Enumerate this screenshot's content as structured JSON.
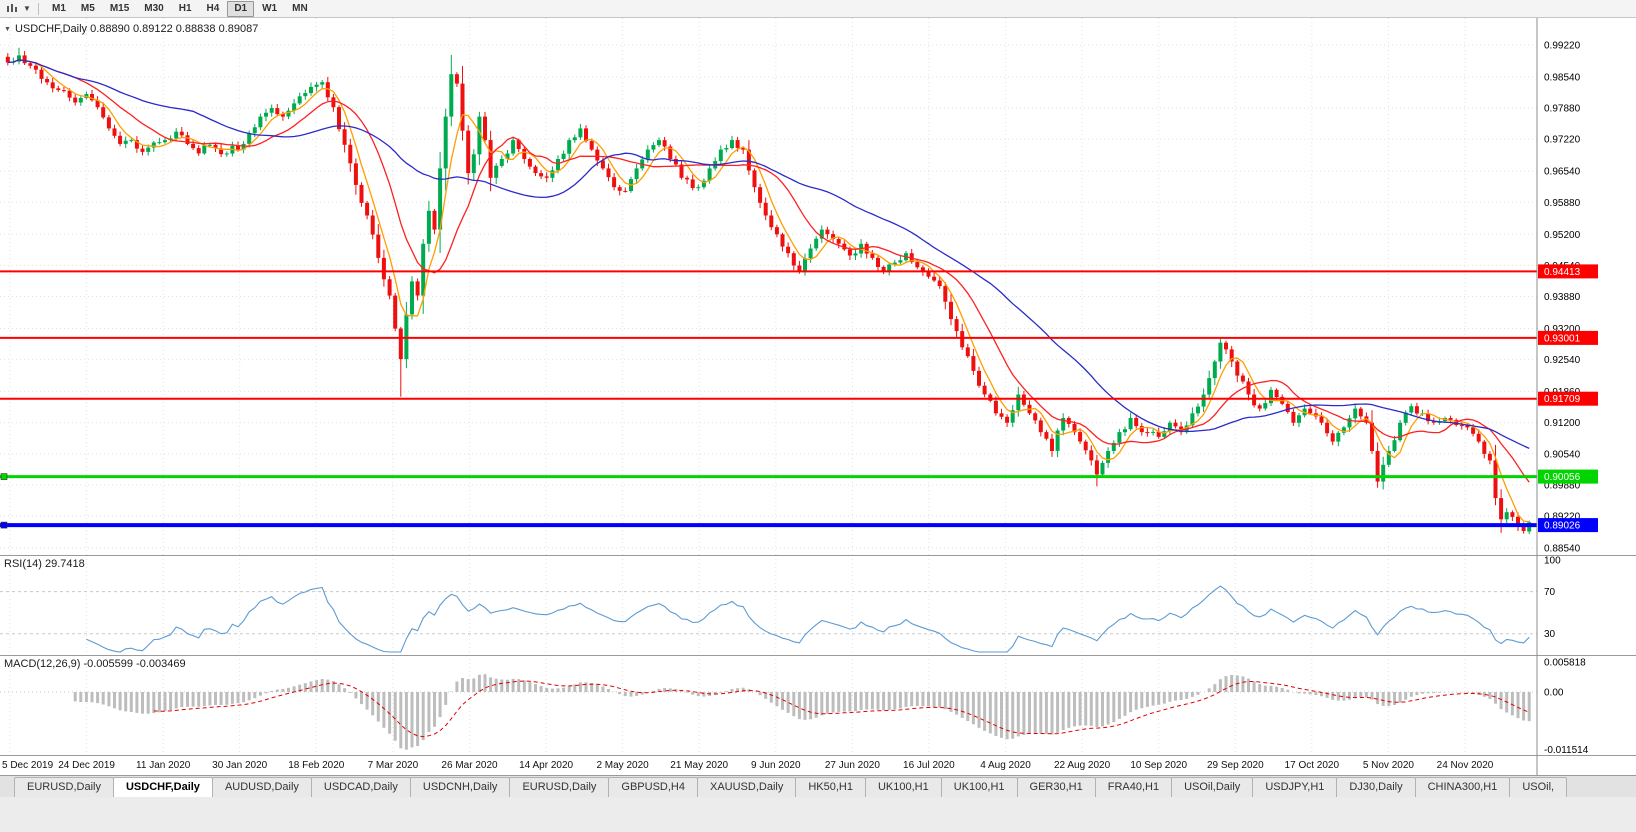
{
  "toolbar": {
    "chart_icon": "candlestick-chart",
    "dropdown_caret": "▼",
    "timeframes": [
      "M1",
      "M5",
      "M15",
      "M30",
      "H1",
      "H4",
      "D1",
      "W1",
      "MN"
    ],
    "active_timeframe": "D1"
  },
  "chart": {
    "collapse_icon": "▼",
    "title_symbol": "USDCHF,Daily",
    "title_ohlc": "0.88890 0.89122 0.88838 0.89087"
  },
  "chart_data": {
    "type": "candlestick",
    "symbol": "USDCHF",
    "period": "Daily",
    "last_candle": {
      "open": 0.8889,
      "high": 0.89122,
      "low": 0.88838,
      "close": 0.89087
    },
    "y_axis_ticks": [
      "0.99220",
      "0.98540",
      "0.97880",
      "0.97220",
      "0.96540",
      "0.95880",
      "0.95200",
      "0.94540",
      "0.93880",
      "0.93200",
      "0.92540",
      "0.91860",
      "0.91200",
      "0.90540",
      "0.89880",
      "0.89220",
      "0.88540"
    ],
    "y_top_value": 0.9922,
    "y_bottom_value": 0.8854,
    "x_labels": [
      "5 Dec 2019",
      "24 Dec 2019",
      "11 Jan 2020",
      "30 Jan 2020",
      "18 Feb 2020",
      "7 Mar 2020",
      "26 Mar 2020",
      "14 Apr 2020",
      "2 May 2020",
      "21 May 2020",
      "9 Jun 2020",
      "27 Jun 2020",
      "16 Jul 2020",
      "4 Aug 2020",
      "22 Aug 2020",
      "10 Sep 2020",
      "29 Sep 2020",
      "17 Oct 2020",
      "5 Nov 2020",
      "24 Nov 2020"
    ],
    "candle_count": 272,
    "noise": 0.0018,
    "up_color": "#00AB50",
    "down_color": "#EE0F0F",
    "close_anchors": [
      [
        0,
        0.9885
      ],
      [
        2,
        0.99
      ],
      [
        4,
        0.9878
      ],
      [
        6,
        0.985
      ],
      [
        8,
        0.983
      ],
      [
        10,
        0.9825
      ],
      [
        12,
        0.98
      ],
      [
        14,
        0.9818
      ],
      [
        16,
        0.979
      ],
      [
        18,
        0.9745
      ],
      [
        20,
        0.9712
      ],
      [
        22,
        0.972
      ],
      [
        24,
        0.9695
      ],
      [
        26,
        0.9715
      ],
      [
        28,
        0.972
      ],
      [
        30,
        0.9738
      ],
      [
        32,
        0.9712
      ],
      [
        34,
        0.9692
      ],
      [
        36,
        0.971
      ],
      [
        38,
        0.969
      ],
      [
        40,
        0.9708
      ],
      [
        41,
        0.97
      ],
      [
        43,
        0.9735
      ],
      [
        45,
        0.977
      ],
      [
        47,
        0.9788
      ],
      [
        49,
        0.977
      ],
      [
        51,
        0.9798
      ],
      [
        53,
        0.982
      ],
      [
        55,
        0.9838
      ],
      [
        56,
        0.9843
      ],
      [
        58,
        0.979
      ],
      [
        60,
        0.971
      ],
      [
        62,
        0.9625
      ],
      [
        64,
        0.956
      ],
      [
        66,
        0.947
      ],
      [
        68,
        0.939
      ],
      [
        69,
        0.932
      ],
      [
        70,
        0.9255
      ],
      [
        71,
        0.935
      ],
      [
        72,
        0.942
      ],
      [
        73,
        0.939
      ],
      [
        74,
        0.95
      ],
      [
        75,
        0.957
      ],
      [
        76,
        0.953
      ],
      [
        77,
        0.966
      ],
      [
        78,
        0.977
      ],
      [
        79,
        0.986
      ],
      [
        80,
        0.984
      ],
      [
        81,
        0.974
      ],
      [
        82,
        0.965
      ],
      [
        83,
        0.969
      ],
      [
        84,
        0.977
      ],
      [
        85,
        0.972
      ],
      [
        86,
        0.964
      ],
      [
        88,
        0.968
      ],
      [
        90,
        0.972
      ],
      [
        92,
        0.968
      ],
      [
        94,
        0.965
      ],
      [
        96,
        0.964
      ],
      [
        98,
        0.968
      ],
      [
        100,
        0.972
      ],
      [
        102,
        0.9745
      ],
      [
        104,
        0.97
      ],
      [
        106,
        0.966
      ],
      [
        108,
        0.962
      ],
      [
        110,
        0.9612
      ],
      [
        112,
        0.966
      ],
      [
        114,
        0.97
      ],
      [
        116,
        0.972
      ],
      [
        118,
        0.968
      ],
      [
        120,
        0.964
      ],
      [
        123,
        0.962
      ],
      [
        125,
        0.966
      ],
      [
        127,
        0.97
      ],
      [
        129,
        0.972
      ],
      [
        131,
        0.97
      ],
      [
        133,
        0.962
      ],
      [
        135,
        0.956
      ],
      [
        137,
        0.952
      ],
      [
        139,
        0.948
      ],
      [
        141,
        0.944
      ],
      [
        143,
        0.949
      ],
      [
        145,
        0.953
      ],
      [
        147,
        0.951
      ],
      [
        150,
        0.9475
      ],
      [
        152,
        0.95
      ],
      [
        154,
        0.947
      ],
      [
        156,
        0.944
      ],
      [
        158,
        0.946
      ],
      [
        160,
        0.948
      ],
      [
        162,
        0.945
      ],
      [
        164,
        0.943
      ],
      [
        166,
        0.941
      ],
      [
        168,
        0.934
      ],
      [
        170,
        0.928
      ],
      [
        172,
        0.923
      ],
      [
        174,
        0.918
      ],
      [
        176,
        0.914
      ],
      [
        178,
        0.912
      ],
      [
        180,
        0.918
      ],
      [
        182,
        0.914
      ],
      [
        184,
        0.91
      ],
      [
        186,
        0.906
      ],
      [
        188,
        0.913
      ],
      [
        190,
        0.91
      ],
      [
        191,
        0.908
      ],
      [
        193,
        0.904
      ],
      [
        194,
        0.901
      ],
      [
        196,
        0.906
      ],
      [
        198,
        0.91
      ],
      [
        200,
        0.913
      ],
      [
        202,
        0.91
      ],
      [
        205,
        0.909
      ],
      [
        207,
        0.912
      ],
      [
        209,
        0.91
      ],
      [
        211,
        0.914
      ],
      [
        213,
        0.918
      ],
      [
        215,
        0.925
      ],
      [
        216,
        0.929
      ],
      [
        218,
        0.925
      ],
      [
        219,
        0.922
      ],
      [
        221,
        0.918
      ],
      [
        223,
        0.915
      ],
      [
        225,
        0.919
      ],
      [
        227,
        0.916
      ],
      [
        229,
        0.912
      ],
      [
        231,
        0.915
      ],
      [
        232,
        0.914
      ],
      [
        234,
        0.912
      ],
      [
        236,
        0.908
      ],
      [
        238,
        0.911
      ],
      [
        240,
        0.915
      ],
      [
        242,
        0.912
      ],
      [
        243,
        0.906
      ],
      [
        244,
        0.8995
      ],
      [
        246,
        0.906
      ],
      [
        248,
        0.912
      ],
      [
        250,
        0.9155
      ],
      [
        252,
        0.914
      ],
      [
        254,
        0.912
      ],
      [
        256,
        0.913
      ],
      [
        258,
        0.9115
      ],
      [
        260,
        0.911
      ],
      [
        262,
        0.908
      ],
      [
        264,
        0.904
      ],
      [
        265,
        0.896
      ],
      [
        266,
        0.8915
      ],
      [
        267,
        0.893
      ],
      [
        268,
        0.892
      ],
      [
        269,
        0.89
      ],
      [
        270,
        0.889
      ],
      [
        271,
        0.8909
      ]
    ],
    "wick_overrides": [
      {
        "index": 2,
        "high": 0.9916
      },
      {
        "index": 70,
        "low": 0.9175
      },
      {
        "index": 79,
        "high": 0.9901
      },
      {
        "index": 194,
        "low": 0.8985
      },
      {
        "index": 244,
        "low": 0.8982
      },
      {
        "index": 266,
        "low": 0.8886
      }
    ],
    "moving_averages": [
      {
        "name": "ma-fast-line",
        "period": 5,
        "color": "#FF9E00"
      },
      {
        "name": "ma-mid-line",
        "period": 13,
        "color": "#FF2020"
      },
      {
        "name": "ma-slow-line",
        "period": 34,
        "color": "#2B2BCB"
      }
    ],
    "horizontal_lines": [
      {
        "value": 0.94413,
        "label": "0.94413",
        "color": "#FF0000",
        "width": 2,
        "handle": false
      },
      {
        "value": 0.93001,
        "label": "0.93001",
        "color": "#FF0000",
        "width": 2,
        "handle": false
      },
      {
        "value": 0.91709,
        "label": "0.91709",
        "color": "#FF0000",
        "width": 2,
        "handle": false
      },
      {
        "value": 0.90056,
        "label": "0.90056",
        "color": "#00D500",
        "width": 3,
        "handle": true
      },
      {
        "value": 0.89026,
        "label": "0.89026",
        "color": "#0000FF",
        "width": 4,
        "handle": true
      }
    ]
  },
  "rsi": {
    "label": "RSI(14) 29.7418",
    "period": 14,
    "line_color": "#5B9BD5",
    "level_lines": [
      70,
      30
    ],
    "axis_labels": [
      {
        "text": "100",
        "value": 100
      },
      {
        "text": "70",
        "value": 70
      },
      {
        "text": "30",
        "value": 30
      }
    ]
  },
  "macd": {
    "label": "MACD(12,26,9) -0.005599 -0.003469",
    "fast": 12,
    "slow": 26,
    "signal": 9,
    "histogram_color": "#BDBDBD",
    "signal_color": "#E00000",
    "axis_labels": [
      {
        "text": "0.005818",
        "value": 0.005818
      },
      {
        "text": "0.00",
        "value": 0
      },
      {
        "text": "-0.011514",
        "value": -0.011514
      }
    ]
  },
  "tabs": {
    "items": [
      {
        "label": "EURUSD,Daily",
        "active": false
      },
      {
        "label": "USDCHF,Daily",
        "active": true
      },
      {
        "label": "AUDUSD,Daily",
        "active": false
      },
      {
        "label": "USDCAD,Daily",
        "active": false
      },
      {
        "label": "USDCNH,Daily",
        "active": false
      },
      {
        "label": "EURUSD,Daily",
        "active": false
      },
      {
        "label": "GBPUSD,H4",
        "active": false
      },
      {
        "label": "XAUUSD,Daily",
        "active": false
      },
      {
        "label": "HK50,H1",
        "active": false
      },
      {
        "label": "UK100,H1",
        "active": false
      },
      {
        "label": "UK100,H1",
        "active": false
      },
      {
        "label": "GER30,H1",
        "active": false
      },
      {
        "label": "FRA40,H1",
        "active": false
      },
      {
        "label": "USOil,Daily",
        "active": false
      },
      {
        "label": "USDJPY,H1",
        "active": false
      },
      {
        "label": "DJ30,Daily",
        "active": false
      },
      {
        "label": "CHINA300,H1",
        "active": false
      },
      {
        "label": "USOil,",
        "active": false
      }
    ]
  }
}
